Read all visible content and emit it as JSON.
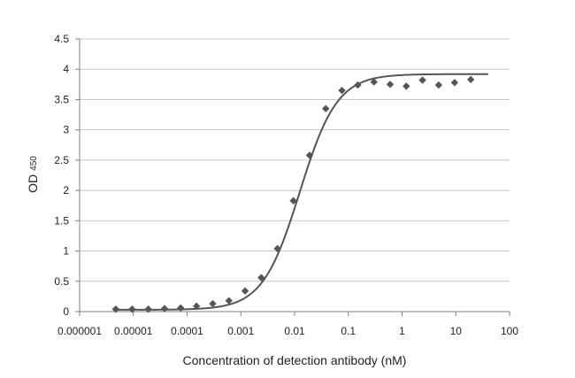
{
  "chart_data": {
    "type": "scatter",
    "title": "",
    "xlabel": "Concentration of detection antibody (nM)",
    "ylabel": "OD",
    "ylabel_subscript": "450",
    "x_scale": "log",
    "xlim": [
      1e-06,
      100
    ],
    "ylim": [
      0,
      4.5
    ],
    "x_ticks": [
      1e-06,
      1e-05,
      0.0001,
      0.001,
      0.01,
      0.1,
      1,
      10,
      100
    ],
    "x_tick_labels": [
      "0.000001",
      "0.00001",
      "0.0001",
      "0.001",
      "0.01",
      "0.1",
      "1",
      "10",
      "100"
    ],
    "y_ticks": [
      0,
      0.5,
      1,
      1.5,
      2,
      2.5,
      3,
      3.5,
      4,
      4.5
    ],
    "y_tick_labels": [
      "0",
      "0.5",
      "1",
      "1.5",
      "2",
      "2.5",
      "3",
      "3.5",
      "4",
      "4.5"
    ],
    "grid": "horizontal",
    "legend": "none",
    "colors": {
      "marker": "#555555",
      "curve": "#555555",
      "grid": "#c8c8c8",
      "axis": "#7f7f7f"
    },
    "series": [
      {
        "marker": "diamond",
        "points": [
          {
            "x": 4.7e-06,
            "y": 0.04
          },
          {
            "x": 9.5e-06,
            "y": 0.04
          },
          {
            "x": 1.9e-05,
            "y": 0.04
          },
          {
            "x": 3.8e-05,
            "y": 0.05
          },
          {
            "x": 7.6e-05,
            "y": 0.06
          },
          {
            "x": 0.00015,
            "y": 0.09
          },
          {
            "x": 0.0003,
            "y": 0.13
          },
          {
            "x": 0.0006,
            "y": 0.18
          },
          {
            "x": 0.0012,
            "y": 0.34
          },
          {
            "x": 0.0024,
            "y": 0.56
          },
          {
            "x": 0.0048,
            "y": 1.04
          },
          {
            "x": 0.0095,
            "y": 1.83
          },
          {
            "x": 0.019,
            "y": 2.58
          },
          {
            "x": 0.038,
            "y": 3.35
          },
          {
            "x": 0.076,
            "y": 3.65
          },
          {
            "x": 0.15,
            "y": 3.74
          },
          {
            "x": 0.3,
            "y": 3.79
          },
          {
            "x": 0.6,
            "y": 3.75
          },
          {
            "x": 1.2,
            "y": 3.72
          },
          {
            "x": 2.4,
            "y": 3.82
          },
          {
            "x": 4.8,
            "y": 3.74
          },
          {
            "x": 9.5,
            "y": 3.78
          },
          {
            "x": 19,
            "y": 3.83
          }
        ]
      }
    ],
    "fit_curve": {
      "model": "4PL",
      "bottom": 0.03,
      "top": 3.92,
      "ec50": 0.0125,
      "hill": 1.25,
      "x_range": [
        4.7e-06,
        40
      ]
    }
  }
}
